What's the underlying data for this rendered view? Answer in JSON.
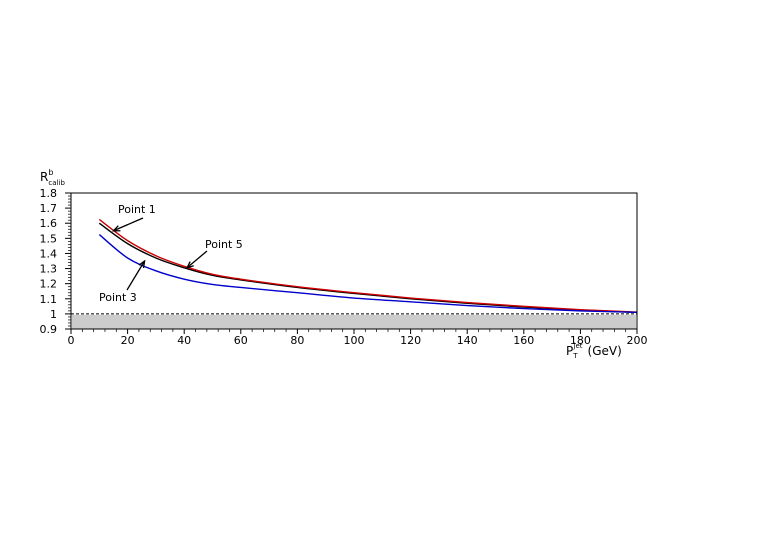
{
  "chart_data": {
    "type": "line",
    "ylabel": "R",
    "ylabel_sup": "b",
    "ylabel_sub": "calib",
    "xlabel": "P",
    "xlabel_sub": "T",
    "xlabel_sup": "jet",
    "xlabel_unit": "(GeV)",
    "xlim": [
      0,
      200
    ],
    "ylim": [
      0.9,
      1.8
    ],
    "xticks": [
      0,
      20,
      40,
      60,
      80,
      100,
      120,
      140,
      160,
      180,
      200
    ],
    "xtick_labels": [
      "0",
      "20",
      "40",
      "60",
      "80",
      "100",
      "120",
      "140",
      "160",
      "180",
      "200"
    ],
    "yticks": [
      0.9,
      1.0,
      1.1,
      1.2,
      1.3,
      1.4,
      1.5,
      1.6,
      1.7,
      1.8
    ],
    "ytick_labels": [
      "0.9",
      "1",
      "1.1",
      "1.2",
      "1.3",
      "1.4",
      "1.5",
      "1.6",
      "1.7",
      "1.8"
    ],
    "grid": false,
    "series": [
      {
        "name": "Point 1",
        "color": "#000000",
        "x": [
          10,
          20,
          30,
          40,
          50,
          60,
          80,
          100,
          120,
          140,
          160,
          180,
          200
        ],
        "values": [
          1.6,
          1.465,
          1.37,
          1.305,
          1.255,
          1.225,
          1.175,
          1.135,
          1.1,
          1.07,
          1.045,
          1.025,
          1.01
        ]
      },
      {
        "name": "Point 5",
        "color": "#cc0000",
        "x": [
          10,
          20,
          30,
          40,
          50,
          60,
          80,
          100,
          120,
          140,
          160,
          180,
          200
        ],
        "values": [
          1.625,
          1.485,
          1.385,
          1.315,
          1.262,
          1.23,
          1.18,
          1.14,
          1.105,
          1.075,
          1.05,
          1.028,
          1.012
        ]
      },
      {
        "name": "Point 3",
        "color": "#0000cc",
        "x": [
          10,
          20,
          30,
          40,
          50,
          60,
          80,
          100,
          120,
          140,
          160,
          180,
          200
        ],
        "values": [
          1.525,
          1.37,
          1.285,
          1.23,
          1.195,
          1.175,
          1.14,
          1.105,
          1.08,
          1.055,
          1.035,
          1.02,
          1.01
        ]
      }
    ],
    "reference_line": {
      "y": 1.0,
      "style": "dashed",
      "color": "#000000"
    },
    "annotations": [
      {
        "text": "Point 1",
        "arrow_to": [
          15,
          1.55
        ]
      },
      {
        "text": "Point 5",
        "arrow_to": [
          41,
          1.305
        ]
      },
      {
        "text": "Point 3",
        "arrow_to": [
          26,
          1.35
        ]
      }
    ]
  }
}
